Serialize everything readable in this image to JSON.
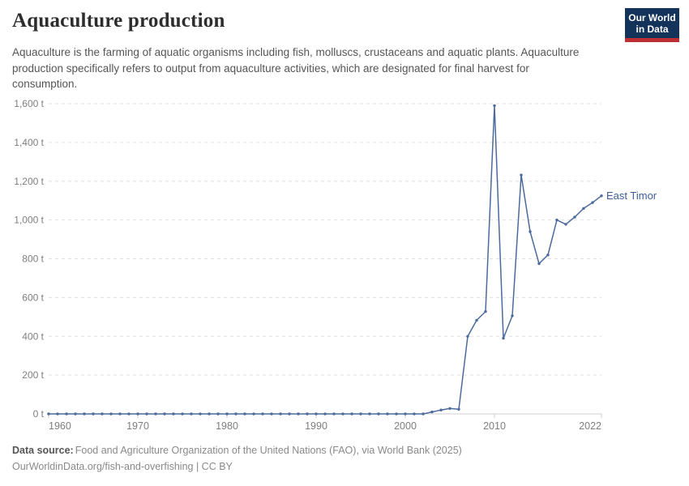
{
  "header": {
    "title": "Aquaculture production",
    "subtitle": "Aquaculture is the farming of aquatic organisms including fish, molluscs, crustaceans and aquatic plants. Aquaculture production specifically refers to output from aquaculture activities, which are designated for final harvest for consumption.",
    "logo": {
      "line1": "Our World",
      "line2": "in Data",
      "background_color": "#13335a",
      "bar_color": "#bd2f34"
    }
  },
  "chart_data": {
    "type": "line",
    "title": "Aquaculture production",
    "unit": "t",
    "xlim": [
      1960,
      2022
    ],
    "ylim": [
      0,
      1600
    ],
    "grid": "horizontal-dashed",
    "legend_position": "end-of-line-label",
    "xticks": [
      1960,
      1970,
      1980,
      1990,
      2000,
      2010,
      2022
    ],
    "yticks": [
      {
        "value": 0,
        "label": "0 t"
      },
      {
        "value": 200,
        "label": "200 t"
      },
      {
        "value": 400,
        "label": "400 t"
      },
      {
        "value": 600,
        "label": "600 t"
      },
      {
        "value": 800,
        "label": "800 t"
      },
      {
        "value": 1000,
        "label": "1,000 t"
      },
      {
        "value": 1200,
        "label": "1,200 t"
      },
      {
        "value": 1400,
        "label": "1,400 t"
      },
      {
        "value": 1600,
        "label": "1,600 t"
      }
    ],
    "series": [
      {
        "name": "East Timor",
        "color": "#4c6a9c",
        "label_color": "#3d5c94",
        "years": [
          1960,
          1961,
          1962,
          1963,
          1964,
          1965,
          1966,
          1967,
          1968,
          1969,
          1970,
          1971,
          1972,
          1973,
          1974,
          1975,
          1976,
          1977,
          1978,
          1979,
          1980,
          1981,
          1982,
          1983,
          1984,
          1985,
          1986,
          1987,
          1988,
          1989,
          1990,
          1991,
          1992,
          1993,
          1994,
          1995,
          1996,
          1997,
          1998,
          1999,
          2000,
          2001,
          2002,
          2003,
          2004,
          2005,
          2006,
          2007,
          2008,
          2009,
          2010,
          2011,
          2012,
          2013,
          2014,
          2015,
          2016,
          2017,
          2018,
          2019,
          2020,
          2021,
          2022
        ],
        "values": [
          0,
          0,
          0,
          0,
          0,
          0,
          0,
          0,
          0,
          0,
          0,
          0,
          0,
          0,
          0,
          0,
          0,
          0,
          0,
          0,
          0,
          0,
          0,
          0,
          0,
          0,
          0,
          0,
          0,
          0,
          0,
          0,
          0,
          0,
          0,
          0,
          0,
          0,
          0,
          0,
          0,
          0,
          0,
          10,
          20,
          28,
          24,
          400,
          483,
          528,
          1590,
          390,
          506,
          1232,
          940,
          775,
          820,
          1000,
          978,
          1015,
          1060,
          1090,
          1125
        ]
      }
    ]
  },
  "footer": {
    "datasource_label": "Data source:",
    "datasource_text": "Food and Agriculture Organization of the United Nations (FAO), via World Bank (2025)",
    "link_line": "OurWorldinData.org/fish-and-overfishing | CC BY"
  }
}
